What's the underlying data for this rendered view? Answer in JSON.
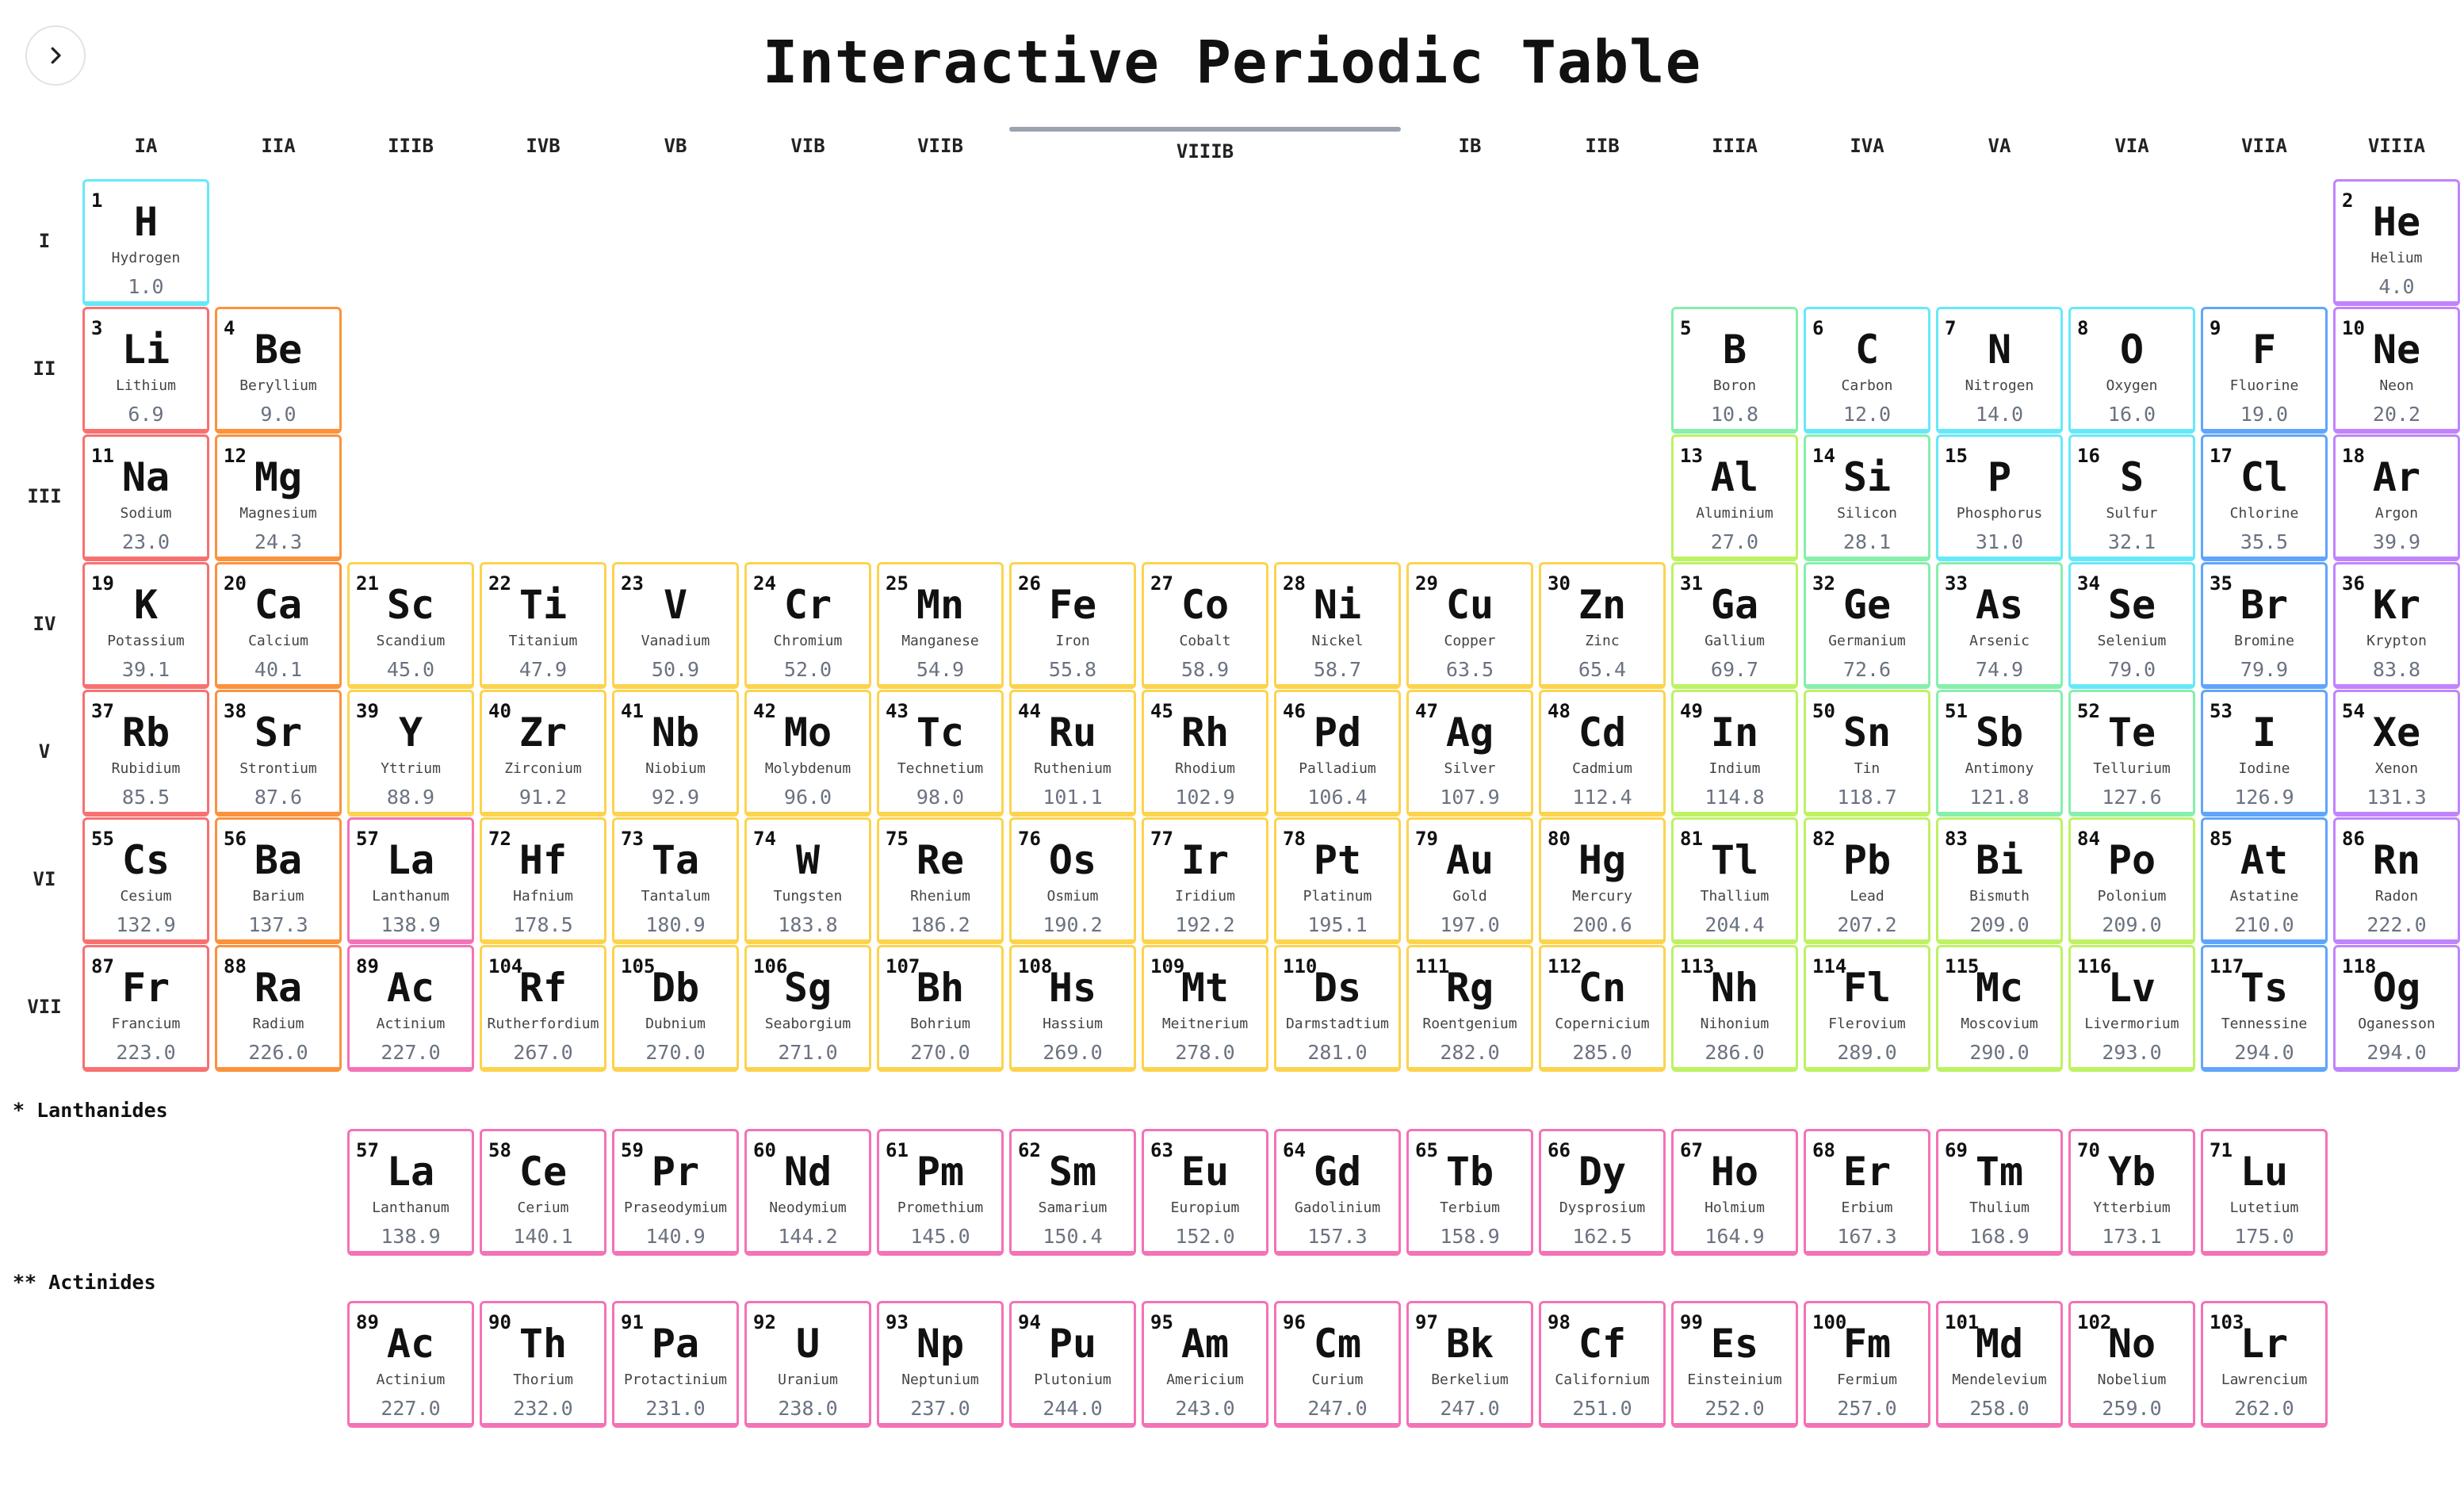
{
  "page": {
    "title": "Interactive Periodic Table",
    "toggle_icon": "chevron-right-icon"
  },
  "groups": [
    "IA",
    "IIA",
    "IIIB",
    "IVB",
    "VB",
    "VIB",
    "VIIB",
    "VIIIB",
    "IB",
    "IIB",
    "IIIA",
    "IVA",
    "VA",
    "VIA",
    "VIIA",
    "VIIIA"
  ],
  "periods": [
    "I",
    "II",
    "III",
    "IV",
    "V",
    "VI",
    "VII"
  ],
  "labels": {
    "lanthanides": "* Lanthanides",
    "actinides": "** Actinides"
  },
  "colors": {
    "nonmetal": "#67e8f9",
    "noble": "#c084fc",
    "alkali": "#f87171",
    "alkaline": "#fb923c",
    "metalloid": "#86efac",
    "halogen": "#60a5fa",
    "transition": "#fcd34d",
    "post": "#bef264",
    "lanthanide": "#f472b6",
    "actinide": "#f472b6"
  },
  "elements": [
    {
      "n": 1,
      "s": "H",
      "name": "Hydrogen",
      "m": "1.0",
      "c": "nonmetal",
      "col": 1,
      "row": 1
    },
    {
      "n": 2,
      "s": "He",
      "name": "Helium",
      "m": "4.0",
      "c": "noble",
      "col": 18,
      "row": 1
    },
    {
      "n": 3,
      "s": "Li",
      "name": "Lithium",
      "m": "6.9",
      "c": "alkali",
      "col": 1,
      "row": 2
    },
    {
      "n": 4,
      "s": "Be",
      "name": "Beryllium",
      "m": "9.0",
      "c": "alkaline",
      "col": 2,
      "row": 2
    },
    {
      "n": 5,
      "s": "B",
      "name": "Boron",
      "m": "10.8",
      "c": "metalloid",
      "col": 13,
      "row": 2
    },
    {
      "n": 6,
      "s": "C",
      "name": "Carbon",
      "m": "12.0",
      "c": "nonmetal",
      "col": 14,
      "row": 2
    },
    {
      "n": 7,
      "s": "N",
      "name": "Nitrogen",
      "m": "14.0",
      "c": "nonmetal",
      "col": 15,
      "row": 2
    },
    {
      "n": 8,
      "s": "O",
      "name": "Oxygen",
      "m": "16.0",
      "c": "nonmetal",
      "col": 16,
      "row": 2
    },
    {
      "n": 9,
      "s": "F",
      "name": "Fluorine",
      "m": "19.0",
      "c": "halogen",
      "col": 17,
      "row": 2
    },
    {
      "n": 10,
      "s": "Ne",
      "name": "Neon",
      "m": "20.2",
      "c": "noble",
      "col": 18,
      "row": 2
    },
    {
      "n": 11,
      "s": "Na",
      "name": "Sodium",
      "m": "23.0",
      "c": "alkali",
      "col": 1,
      "row": 3
    },
    {
      "n": 12,
      "s": "Mg",
      "name": "Magnesium",
      "m": "24.3",
      "c": "alkaline",
      "col": 2,
      "row": 3
    },
    {
      "n": 13,
      "s": "Al",
      "name": "Aluminium",
      "m": "27.0",
      "c": "post",
      "col": 13,
      "row": 3
    },
    {
      "n": 14,
      "s": "Si",
      "name": "Silicon",
      "m": "28.1",
      "c": "metalloid",
      "col": 14,
      "row": 3
    },
    {
      "n": 15,
      "s": "P",
      "name": "Phosphorus",
      "m": "31.0",
      "c": "nonmetal",
      "col": 15,
      "row": 3
    },
    {
      "n": 16,
      "s": "S",
      "name": "Sulfur",
      "m": "32.1",
      "c": "nonmetal",
      "col": 16,
      "row": 3
    },
    {
      "n": 17,
      "s": "Cl",
      "name": "Chlorine",
      "m": "35.5",
      "c": "halogen",
      "col": 17,
      "row": 3
    },
    {
      "n": 18,
      "s": "Ar",
      "name": "Argon",
      "m": "39.9",
      "c": "noble",
      "col": 18,
      "row": 3
    },
    {
      "n": 19,
      "s": "K",
      "name": "Potassium",
      "m": "39.1",
      "c": "alkali",
      "col": 1,
      "row": 4
    },
    {
      "n": 20,
      "s": "Ca",
      "name": "Calcium",
      "m": "40.1",
      "c": "alkaline",
      "col": 2,
      "row": 4
    },
    {
      "n": 21,
      "s": "Sc",
      "name": "Scandium",
      "m": "45.0",
      "c": "transition",
      "col": 3,
      "row": 4
    },
    {
      "n": 22,
      "s": "Ti",
      "name": "Titanium",
      "m": "47.9",
      "c": "transition",
      "col": 4,
      "row": 4
    },
    {
      "n": 23,
      "s": "V",
      "name": "Vanadium",
      "m": "50.9",
      "c": "transition",
      "col": 5,
      "row": 4
    },
    {
      "n": 24,
      "s": "Cr",
      "name": "Chromium",
      "m": "52.0",
      "c": "transition",
      "col": 6,
      "row": 4
    },
    {
      "n": 25,
      "s": "Mn",
      "name": "Manganese",
      "m": "54.9",
      "c": "transition",
      "col": 7,
      "row": 4
    },
    {
      "n": 26,
      "s": "Fe",
      "name": "Iron",
      "m": "55.8",
      "c": "transition",
      "col": 8,
      "row": 4
    },
    {
      "n": 27,
      "s": "Co",
      "name": "Cobalt",
      "m": "58.9",
      "c": "transition",
      "col": 9,
      "row": 4
    },
    {
      "n": 28,
      "s": "Ni",
      "name": "Nickel",
      "m": "58.7",
      "c": "transition",
      "col": 10,
      "row": 4
    },
    {
      "n": 29,
      "s": "Cu",
      "name": "Copper",
      "m": "63.5",
      "c": "transition",
      "col": 11,
      "row": 4
    },
    {
      "n": 30,
      "s": "Zn",
      "name": "Zinc",
      "m": "65.4",
      "c": "transition",
      "col": 12,
      "row": 4
    },
    {
      "n": 31,
      "s": "Ga",
      "name": "Gallium",
      "m": "69.7",
      "c": "post",
      "col": 13,
      "row": 4
    },
    {
      "n": 32,
      "s": "Ge",
      "name": "Germanium",
      "m": "72.6",
      "c": "metalloid",
      "col": 14,
      "row": 4
    },
    {
      "n": 33,
      "s": "As",
      "name": "Arsenic",
      "m": "74.9",
      "c": "metalloid",
      "col": 15,
      "row": 4
    },
    {
      "n": 34,
      "s": "Se",
      "name": "Selenium",
      "m": "79.0",
      "c": "nonmetal",
      "col": 16,
      "row": 4
    },
    {
      "n": 35,
      "s": "Br",
      "name": "Bromine",
      "m": "79.9",
      "c": "halogen",
      "col": 17,
      "row": 4
    },
    {
      "n": 36,
      "s": "Kr",
      "name": "Krypton",
      "m": "83.8",
      "c": "noble",
      "col": 18,
      "row": 4
    },
    {
      "n": 37,
      "s": "Rb",
      "name": "Rubidium",
      "m": "85.5",
      "c": "alkali",
      "col": 1,
      "row": 5
    },
    {
      "n": 38,
      "s": "Sr",
      "name": "Strontium",
      "m": "87.6",
      "c": "alkaline",
      "col": 2,
      "row": 5
    },
    {
      "n": 39,
      "s": "Y",
      "name": "Yttrium",
      "m": "88.9",
      "c": "transition",
      "col": 3,
      "row": 5
    },
    {
      "n": 40,
      "s": "Zr",
      "name": "Zirconium",
      "m": "91.2",
      "c": "transition",
      "col": 4,
      "row": 5
    },
    {
      "n": 41,
      "s": "Nb",
      "name": "Niobium",
      "m": "92.9",
      "c": "transition",
      "col": 5,
      "row": 5
    },
    {
      "n": 42,
      "s": "Mo",
      "name": "Molybdenum",
      "m": "96.0",
      "c": "transition",
      "col": 6,
      "row": 5
    },
    {
      "n": 43,
      "s": "Tc",
      "name": "Technetium",
      "m": "98.0",
      "c": "transition",
      "col": 7,
      "row": 5
    },
    {
      "n": 44,
      "s": "Ru",
      "name": "Ruthenium",
      "m": "101.1",
      "c": "transition",
      "col": 8,
      "row": 5
    },
    {
      "n": 45,
      "s": "Rh",
      "name": "Rhodium",
      "m": "102.9",
      "c": "transition",
      "col": 9,
      "row": 5
    },
    {
      "n": 46,
      "s": "Pd",
      "name": "Palladium",
      "m": "106.4",
      "c": "transition",
      "col": 10,
      "row": 5
    },
    {
      "n": 47,
      "s": "Ag",
      "name": "Silver",
      "m": "107.9",
      "c": "transition",
      "col": 11,
      "row": 5
    },
    {
      "n": 48,
      "s": "Cd",
      "name": "Cadmium",
      "m": "112.4",
      "c": "transition",
      "col": 12,
      "row": 5
    },
    {
      "n": 49,
      "s": "In",
      "name": "Indium",
      "m": "114.8",
      "c": "post",
      "col": 13,
      "row": 5
    },
    {
      "n": 50,
      "s": "Sn",
      "name": "Tin",
      "m": "118.7",
      "c": "post",
      "col": 14,
      "row": 5
    },
    {
      "n": 51,
      "s": "Sb",
      "name": "Antimony",
      "m": "121.8",
      "c": "metalloid",
      "col": 15,
      "row": 5
    },
    {
      "n": 52,
      "s": "Te",
      "name": "Tellurium",
      "m": "127.6",
      "c": "metalloid",
      "col": 16,
      "row": 5
    },
    {
      "n": 53,
      "s": "I",
      "name": "Iodine",
      "m": "126.9",
      "c": "halogen",
      "col": 17,
      "row": 5
    },
    {
      "n": 54,
      "s": "Xe",
      "name": "Xenon",
      "m": "131.3",
      "c": "noble",
      "col": 18,
      "row": 5
    },
    {
      "n": 55,
      "s": "Cs",
      "name": "Cesium",
      "m": "132.9",
      "c": "alkali",
      "col": 1,
      "row": 6
    },
    {
      "n": 56,
      "s": "Ba",
      "name": "Barium",
      "m": "137.3",
      "c": "alkaline",
      "col": 2,
      "row": 6
    },
    {
      "n": 57,
      "s": "La",
      "name": "Lanthanum",
      "m": "138.9",
      "c": "lanthanide",
      "col": 3,
      "row": 6
    },
    {
      "n": 72,
      "s": "Hf",
      "name": "Hafnium",
      "m": "178.5",
      "c": "transition",
      "col": 4,
      "row": 6
    },
    {
      "n": 73,
      "s": "Ta",
      "name": "Tantalum",
      "m": "180.9",
      "c": "transition",
      "col": 5,
      "row": 6
    },
    {
      "n": 74,
      "s": "W",
      "name": "Tungsten",
      "m": "183.8",
      "c": "transition",
      "col": 6,
      "row": 6
    },
    {
      "n": 75,
      "s": "Re",
      "name": "Rhenium",
      "m": "186.2",
      "c": "transition",
      "col": 7,
      "row": 6
    },
    {
      "n": 76,
      "s": "Os",
      "name": "Osmium",
      "m": "190.2",
      "c": "transition",
      "col": 8,
      "row": 6
    },
    {
      "n": 77,
      "s": "Ir",
      "name": "Iridium",
      "m": "192.2",
      "c": "transition",
      "col": 9,
      "row": 6
    },
    {
      "n": 78,
      "s": "Pt",
      "name": "Platinum",
      "m": "195.1",
      "c": "transition",
      "col": 10,
      "row": 6
    },
    {
      "n": 79,
      "s": "Au",
      "name": "Gold",
      "m": "197.0",
      "c": "transition",
      "col": 11,
      "row": 6
    },
    {
      "n": 80,
      "s": "Hg",
      "name": "Mercury",
      "m": "200.6",
      "c": "transition",
      "col": 12,
      "row": 6
    },
    {
      "n": 81,
      "s": "Tl",
      "name": "Thallium",
      "m": "204.4",
      "c": "post",
      "col": 13,
      "row": 6
    },
    {
      "n": 82,
      "s": "Pb",
      "name": "Lead",
      "m": "207.2",
      "c": "post",
      "col": 14,
      "row": 6
    },
    {
      "n": 83,
      "s": "Bi",
      "name": "Bismuth",
      "m": "209.0",
      "c": "post",
      "col": 15,
      "row": 6
    },
    {
      "n": 84,
      "s": "Po",
      "name": "Polonium",
      "m": "209.0",
      "c": "post",
      "col": 16,
      "row": 6
    },
    {
      "n": 85,
      "s": "At",
      "name": "Astatine",
      "m": "210.0",
      "c": "halogen",
      "col": 17,
      "row": 6
    },
    {
      "n": 86,
      "s": "Rn",
      "name": "Radon",
      "m": "222.0",
      "c": "noble",
      "col": 18,
      "row": 6
    },
    {
      "n": 87,
      "s": "Fr",
      "name": "Francium",
      "m": "223.0",
      "c": "alkali",
      "col": 1,
      "row": 7
    },
    {
      "n": 88,
      "s": "Ra",
      "name": "Radium",
      "m": "226.0",
      "c": "alkaline",
      "col": 2,
      "row": 7
    },
    {
      "n": 89,
      "s": "Ac",
      "name": "Actinium",
      "m": "227.0",
      "c": "actinide",
      "col": 3,
      "row": 7
    },
    {
      "n": 104,
      "s": "Rf",
      "name": "Rutherfordium",
      "m": "267.0",
      "c": "transition",
      "col": 4,
      "row": 7
    },
    {
      "n": 105,
      "s": "Db",
      "name": "Dubnium",
      "m": "270.0",
      "c": "transition",
      "col": 5,
      "row": 7
    },
    {
      "n": 106,
      "s": "Sg",
      "name": "Seaborgium",
      "m": "271.0",
      "c": "transition",
      "col": 6,
      "row": 7
    },
    {
      "n": 107,
      "s": "Bh",
      "name": "Bohrium",
      "m": "270.0",
      "c": "transition",
      "col": 7,
      "row": 7
    },
    {
      "n": 108,
      "s": "Hs",
      "name": "Hassium",
      "m": "269.0",
      "c": "transition",
      "col": 8,
      "row": 7
    },
    {
      "n": 109,
      "s": "Mt",
      "name": "Meitnerium",
      "m": "278.0",
      "c": "transition",
      "col": 9,
      "row": 7
    },
    {
      "n": 110,
      "s": "Ds",
      "name": "Darmstadtium",
      "m": "281.0",
      "c": "transition",
      "col": 10,
      "row": 7
    },
    {
      "n": 111,
      "s": "Rg",
      "name": "Roentgenium",
      "m": "282.0",
      "c": "transition",
      "col": 11,
      "row": 7
    },
    {
      "n": 112,
      "s": "Cn",
      "name": "Copernicium",
      "m": "285.0",
      "c": "transition",
      "col": 12,
      "row": 7
    },
    {
      "n": 113,
      "s": "Nh",
      "name": "Nihonium",
      "m": "286.0",
      "c": "post",
      "col": 13,
      "row": 7
    },
    {
      "n": 114,
      "s": "Fl",
      "name": "Flerovium",
      "m": "289.0",
      "c": "post",
      "col": 14,
      "row": 7
    },
    {
      "n": 115,
      "s": "Mc",
      "name": "Moscovium",
      "m": "290.0",
      "c": "post",
      "col": 15,
      "row": 7
    },
    {
      "n": 116,
      "s": "Lv",
      "name": "Livermorium",
      "m": "293.0",
      "c": "post",
      "col": 16,
      "row": 7
    },
    {
      "n": 117,
      "s": "Ts",
      "name": "Tennessine",
      "m": "294.0",
      "c": "halogen",
      "col": 17,
      "row": 7
    },
    {
      "n": 118,
      "s": "Og",
      "name": "Oganesson",
      "m": "294.0",
      "c": "noble",
      "col": 18,
      "row": 7
    }
  ],
  "lanthanides": [
    {
      "n": 57,
      "s": "La",
      "name": "Lanthanum",
      "m": "138.9"
    },
    {
      "n": 58,
      "s": "Ce",
      "name": "Cerium",
      "m": "140.1"
    },
    {
      "n": 59,
      "s": "Pr",
      "name": "Praseodymium",
      "m": "140.9"
    },
    {
      "n": 60,
      "s": "Nd",
      "name": "Neodymium",
      "m": "144.2"
    },
    {
      "n": 61,
      "s": "Pm",
      "name": "Promethium",
      "m": "145.0"
    },
    {
      "n": 62,
      "s": "Sm",
      "name": "Samarium",
      "m": "150.4"
    },
    {
      "n": 63,
      "s": "Eu",
      "name": "Europium",
      "m": "152.0"
    },
    {
      "n": 64,
      "s": "Gd",
      "name": "Gadolinium",
      "m": "157.3"
    },
    {
      "n": 65,
      "s": "Tb",
      "name": "Terbium",
      "m": "158.9"
    },
    {
      "n": 66,
      "s": "Dy",
      "name": "Dysprosium",
      "m": "162.5"
    },
    {
      "n": 67,
      "s": "Ho",
      "name": "Holmium",
      "m": "164.9"
    },
    {
      "n": 68,
      "s": "Er",
      "name": "Erbium",
      "m": "167.3"
    },
    {
      "n": 69,
      "s": "Tm",
      "name": "Thulium",
      "m": "168.9"
    },
    {
      "n": 70,
      "s": "Yb",
      "name": "Ytterbium",
      "m": "173.1"
    },
    {
      "n": 71,
      "s": "Lu",
      "name": "Lutetium",
      "m": "175.0"
    }
  ],
  "actinides": [
    {
      "n": 89,
      "s": "Ac",
      "name": "Actinium",
      "m": "227.0"
    },
    {
      "n": 90,
      "s": "Th",
      "name": "Thorium",
      "m": "232.0"
    },
    {
      "n": 91,
      "s": "Pa",
      "name": "Protactinium",
      "m": "231.0"
    },
    {
      "n": 92,
      "s": "U",
      "name": "Uranium",
      "m": "238.0"
    },
    {
      "n": 93,
      "s": "Np",
      "name": "Neptunium",
      "m": "237.0"
    },
    {
      "n": 94,
      "s": "Pu",
      "name": "Plutonium",
      "m": "244.0"
    },
    {
      "n": 95,
      "s": "Am",
      "name": "Americium",
      "m": "243.0"
    },
    {
      "n": 96,
      "s": "Cm",
      "name": "Curium",
      "m": "247.0"
    },
    {
      "n": 97,
      "s": "Bk",
      "name": "Berkelium",
      "m": "247.0"
    },
    {
      "n": 98,
      "s": "Cf",
      "name": "Californium",
      "m": "251.0"
    },
    {
      "n": 99,
      "s": "Es",
      "name": "Einsteinium",
      "m": "252.0"
    },
    {
      "n": 100,
      "s": "Fm",
      "name": "Fermium",
      "m": "257.0"
    },
    {
      "n": 101,
      "s": "Md",
      "name": "Mendelevium",
      "m": "258.0"
    },
    {
      "n": 102,
      "s": "No",
      "name": "Nobelium",
      "m": "259.0"
    },
    {
      "n": 103,
      "s": "Lr",
      "name": "Lawrencium",
      "m": "262.0"
    }
  ]
}
